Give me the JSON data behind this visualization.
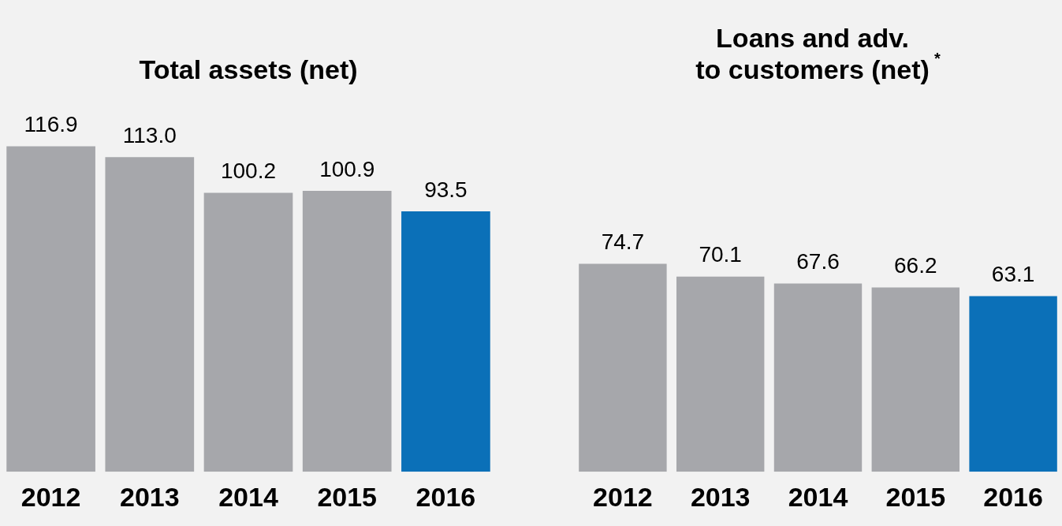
{
  "chart_data": [
    {
      "type": "bar",
      "title": "Total assets (net)",
      "categories": [
        "2012",
        "2013",
        "2014",
        "2015",
        "2016"
      ],
      "values": [
        116.9,
        113.0,
        100.2,
        100.9,
        93.5
      ],
      "value_labels": [
        "116.9",
        "113.0",
        "100.2",
        "100.9",
        "93.5"
      ],
      "colors": [
        "#a6a7ab",
        "#a6a7ab",
        "#a6a7ab",
        "#a6a7ab",
        "#0b70b8"
      ],
      "tick_labels": "x"
    },
    {
      "type": "bar",
      "title": "Loans and adv.\nto customers (net)$^{*}$",
      "categories": [
        "2012",
        "2013",
        "2014",
        "2015",
        "2016"
      ],
      "values": [
        74.7,
        70.1,
        67.6,
        66.2,
        63.1
      ],
      "value_labels": [
        "74.7",
        "70.1",
        "67.6",
        "66.2",
        "63.1"
      ],
      "colors": [
        "#a6a7ab",
        "#a6a7ab",
        "#a6a7ab",
        "#a6a7ab",
        "#0b70b8"
      ],
      "tick_labels": "x"
    }
  ]
}
